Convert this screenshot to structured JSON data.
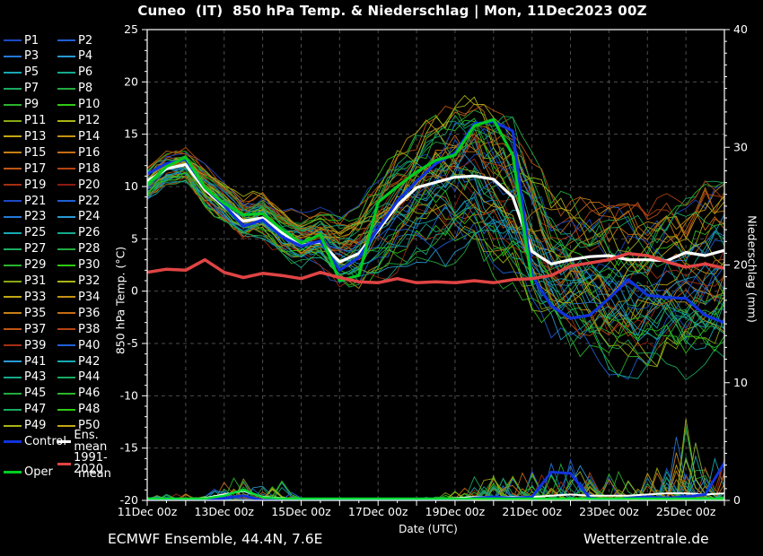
{
  "title": "Cuneo  (IT)  850 hPa Temp. & Niederschlag | Mon, 11Dec2023 00Z",
  "footer": {
    "left": "ECMWF Ensemble, 44.4N, 7.6E",
    "right": "Wetterzentrale.de"
  },
  "legend": {
    "members": [
      {
        "label": "P1",
        "color": "#1c49c8"
      },
      {
        "label": "P2",
        "color": "#1f5fd4"
      },
      {
        "label": "P3",
        "color": "#2379d8"
      },
      {
        "label": "P4",
        "color": "#2899d4"
      },
      {
        "label": "P5",
        "color": "#17a8b4"
      },
      {
        "label": "P6",
        "color": "#14a98c"
      },
      {
        "label": "P7",
        "color": "#1aaa60"
      },
      {
        "label": "P8",
        "color": "#22ab40"
      },
      {
        "label": "P9",
        "color": "#2cb32c"
      },
      {
        "label": "P10",
        "color": "#2ec914"
      },
      {
        "label": "P11",
        "color": "#86a812"
      },
      {
        "label": "P12",
        "color": "#aab414"
      },
      {
        "label": "P13",
        "color": "#c2a812"
      },
      {
        "label": "P14",
        "color": "#c49114"
      },
      {
        "label": "P15",
        "color": "#c67f16"
      },
      {
        "label": "P16",
        "color": "#c66c14"
      },
      {
        "label": "P17",
        "color": "#be5514"
      },
      {
        "label": "P18",
        "color": "#b44312"
      },
      {
        "label": "P19",
        "color": "#a62e12"
      },
      {
        "label": "P20",
        "color": "#8c1a10"
      },
      {
        "label": "P21",
        "color": "#1c49c8"
      },
      {
        "label": "P22",
        "color": "#1f5fd4"
      },
      {
        "label": "P23",
        "color": "#2379d8"
      },
      {
        "label": "P24",
        "color": "#2899d4"
      },
      {
        "label": "P25",
        "color": "#17a8b4"
      },
      {
        "label": "P26",
        "color": "#14a98c"
      },
      {
        "label": "P27",
        "color": "#1aaa60"
      },
      {
        "label": "P28",
        "color": "#22ab40"
      },
      {
        "label": "P29",
        "color": "#2cb32c"
      },
      {
        "label": "P30",
        "color": "#2ec914"
      },
      {
        "label": "P31",
        "color": "#86a812"
      },
      {
        "label": "P32",
        "color": "#aab414"
      },
      {
        "label": "P33",
        "color": "#c2a812"
      },
      {
        "label": "P34",
        "color": "#c49114"
      },
      {
        "label": "P35",
        "color": "#c67f16"
      },
      {
        "label": "P36",
        "color": "#c66c14"
      },
      {
        "label": "P37",
        "color": "#be5514"
      },
      {
        "label": "P38",
        "color": "#b44312"
      },
      {
        "label": "P39",
        "color": "#a62e12"
      },
      {
        "label": "P40",
        "color": "#1f5fd4"
      },
      {
        "label": "P41",
        "color": "#2899d4"
      },
      {
        "label": "P42",
        "color": "#17a8b4"
      },
      {
        "label": "P43",
        "color": "#14a98c"
      },
      {
        "label": "P44",
        "color": "#1aaa60"
      },
      {
        "label": "P45",
        "color": "#22ab40"
      },
      {
        "label": "P46",
        "color": "#2cb32c"
      },
      {
        "label": "P47",
        "color": "#1aaa60"
      },
      {
        "label": "P48",
        "color": "#2ec914"
      },
      {
        "label": "P49",
        "color": "#aab414"
      },
      {
        "label": "P50",
        "color": "#c2a812"
      }
    ],
    "control": {
      "label": "Control",
      "color": "#1133dd"
    },
    "ens_mean": {
      "label": "Ens. mean",
      "color": "#ffffff"
    },
    "climate": {
      "label_line1": "1991-2020",
      "label_line2": "mean",
      "color": "#e04444"
    },
    "oper": {
      "label": "Oper",
      "color": "#00cc22"
    }
  },
  "chart_data": {
    "type": "line",
    "title": "Cuneo  (IT)  850 hPa Temp. & Niederschlag | Mon, 11Dec2023 00Z",
    "xlabel": "Date (UTC)",
    "ylabel_left": "850 hPa Temp. (°C)",
    "ylabel_right": "Niederschlag (mm)",
    "ylim_left": [
      -20,
      25
    ],
    "ytick_step_left": 5,
    "ylim_right": [
      0,
      40
    ],
    "ytick_step_right": 10,
    "grid": true,
    "x_step_days": 0.5,
    "x_max_days": 15,
    "x_ticks": {
      "days": [
        0,
        2,
        4,
        6,
        8,
        10,
        12,
        14
      ],
      "labels": [
        "11Dec 00z",
        "13Dec 00z",
        "15Dec 00z",
        "17Dec 00z",
        "19Dec 00z",
        "21Dec 00z",
        "23Dec 00z",
        "25Dec 00z"
      ]
    },
    "series": [
      {
        "name": "Ens. mean",
        "axis": "temp",
        "color": "#ffffff",
        "width": 3.2,
        "values": [
          10.5,
          11.7,
          12.1,
          9.7,
          8.1,
          6.7,
          7.0,
          5.6,
          4.4,
          4.7,
          2.8,
          3.6,
          5.8,
          8.2,
          9.9,
          10.4,
          10.9,
          11.0,
          10.7,
          9.0,
          3.8,
          2.6,
          3.0,
          3.3,
          3.4,
          3.0,
          3.0,
          2.9,
          3.7,
          3.4,
          3.9
        ]
      },
      {
        "name": "Control",
        "axis": "temp",
        "color": "#1133dd",
        "width": 3.2,
        "values": [
          11.2,
          12.2,
          12.6,
          9.9,
          8.2,
          6.2,
          6.8,
          5.2,
          4.3,
          4.8,
          2.0,
          3.2,
          6.0,
          8.6,
          10.5,
          12.2,
          13.2,
          16.0,
          16.2,
          15.3,
          1.5,
          -1.4,
          -2.6,
          -2.3,
          -0.7,
          1.1,
          -0.4,
          -0.6,
          -0.7,
          -2.3,
          -3.0
        ]
      },
      {
        "name": "Oper",
        "axis": "temp",
        "color": "#00cc22",
        "width": 3.2,
        "values": [
          10.2,
          11.9,
          12.8,
          9.9,
          8.4,
          7.3,
          7.4,
          5.9,
          4.6,
          5.4,
          1.0,
          1.5,
          8.5,
          10.0,
          11.4,
          12.5,
          13.0,
          15.8,
          16.4,
          13.0,
          0.8
        ]
      },
      {
        "name": "1991-2020 mean",
        "axis": "temp",
        "color": "#e04444",
        "width": 3.5,
        "values": [
          1.8,
          2.1,
          2.0,
          3.0,
          1.8,
          1.3,
          1.7,
          1.5,
          1.2,
          1.8,
          1.3,
          0.9,
          0.8,
          1.2,
          0.8,
          0.9,
          0.8,
          1.0,
          0.8,
          1.1,
          1.2,
          1.5,
          2.4,
          2.7,
          3.0,
          3.6,
          3.4,
          2.8,
          2.3,
          2.6,
          2.2
        ]
      },
      {
        "name": "Ens. mean precip",
        "axis": "precip",
        "color": "#ffffff",
        "width": 2,
        "values": [
          0.05,
          0.05,
          0.1,
          0.2,
          0.5,
          0.8,
          0.3,
          0.2,
          0.05,
          0.05,
          0.05,
          0.05,
          0.05,
          0.05,
          0.05,
          0.1,
          0.2,
          0.3,
          0.3,
          0.3,
          0.3,
          0.4,
          0.5,
          0.4,
          0.4,
          0.4,
          0.5,
          0.6,
          0.6,
          0.5,
          0.6
        ]
      },
      {
        "name": "Control precip",
        "axis": "precip",
        "color": "#1133dd",
        "width": 3,
        "values": [
          0,
          0,
          0,
          0,
          0.2,
          0.4,
          0,
          0,
          0,
          0,
          0,
          0,
          0,
          0,
          0,
          0,
          0,
          0.2,
          0.3,
          0.2,
          0.3,
          2.4,
          2.3,
          0.2,
          0,
          0.2,
          0.3,
          0.2,
          0.3,
          0.5,
          3.2
        ]
      },
      {
        "name": "Oper precip",
        "axis": "precip",
        "color": "#00dd33",
        "width": 2.5,
        "values": [
          0.15,
          0.15,
          0.15,
          0.15,
          0.4,
          0.9,
          0.25,
          0.15,
          0.15,
          0.15,
          0.15,
          0.15,
          0.15,
          0.15,
          0.15,
          0.15,
          0.15,
          0.15,
          0.15,
          0.15,
          0.15,
          0.15,
          0.15,
          0.15,
          0.15,
          0.15,
          0.15,
          0.15,
          0.15,
          0.15,
          0.15
        ]
      }
    ],
    "ensemble": {
      "count": 50,
      "seed": 11,
      "envelope_temp_min": [
        8.2,
        9.8,
        10.4,
        7.8,
        6.3,
        4.8,
        4.9,
        3.4,
        2.4,
        2.4,
        0.2,
        -0.2,
        0.8,
        2.0,
        3.0,
        3.2,
        2.2,
        3.0,
        1.0,
        0.0,
        -2.5,
        -4.0,
        -5.5,
        -6.5,
        -7.5,
        -8.0,
        -8.0,
        -7.0,
        -8.0,
        -7.0,
        -6.0
      ],
      "envelope_temp_max": [
        11.8,
        13.2,
        13.6,
        12.0,
        10.4,
        9.0,
        9.6,
        8.0,
        7.6,
        8.0,
        7.0,
        8.0,
        11.0,
        13.5,
        15.0,
        17.0,
        18.0,
        19.0,
        16.8,
        16.2,
        13.0,
        9.5,
        9.0,
        8.5,
        8.0,
        8.0,
        8.0,
        9.0,
        9.0,
        10.0,
        10.0
      ],
      "envelope_precip_max": [
        0.3,
        0.5,
        0.6,
        0.4,
        2.0,
        2.6,
        1.4,
        1.6,
        0.3,
        0.2,
        0.2,
        0.2,
        0.2,
        0.2,
        0.2,
        0.3,
        1.0,
        2.0,
        2.2,
        2.0,
        2.5,
        3.0,
        4.0,
        2.5,
        2.2,
        2.5,
        2.5,
        3.5,
        7.5,
        3.0,
        4.0
      ]
    },
    "colors": {
      "background": "#000000",
      "frame": "#ffffff",
      "grid": "#4d4d4d",
      "text": "#ffffff"
    }
  }
}
